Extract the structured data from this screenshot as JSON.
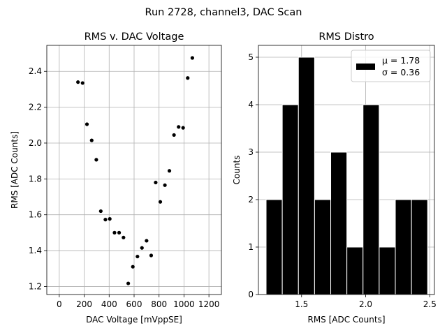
{
  "suptitle": "Run 2728, channel3, DAC Scan",
  "chart_data": [
    {
      "type": "scatter",
      "title": "RMS v. DAC Voltage",
      "xlabel": "DAC Voltage [mVppSE]",
      "ylabel": "RMS [ADC Counts]",
      "xlim": [
        -100,
        1300
      ],
      "ylim": [
        1.155,
        2.545
      ],
      "xticks": [
        0,
        200,
        400,
        600,
        800,
        1000,
        1200
      ],
      "yticks": [
        1.2,
        1.4,
        1.6,
        1.8,
        2.0,
        2.2,
        2.4
      ],
      "ytick_labels": [
        "1.2",
        "1.4",
        "1.6",
        "1.8",
        "2.0",
        "2.2",
        "2.4"
      ],
      "grid": true,
      "marker_color": "#000000",
      "points": [
        {
          "x": 150,
          "y": 2.34
        },
        {
          "x": 187,
          "y": 2.335
        },
        {
          "x": 222,
          "y": 2.105
        },
        {
          "x": 260,
          "y": 2.015
        },
        {
          "x": 297,
          "y": 1.907
        },
        {
          "x": 333,
          "y": 1.62
        },
        {
          "x": 370,
          "y": 1.573
        },
        {
          "x": 405,
          "y": 1.577
        },
        {
          "x": 443,
          "y": 1.5
        },
        {
          "x": 480,
          "y": 1.5
        },
        {
          "x": 515,
          "y": 1.473
        },
        {
          "x": 553,
          "y": 1.217
        },
        {
          "x": 590,
          "y": 1.31
        },
        {
          "x": 627,
          "y": 1.367
        },
        {
          "x": 663,
          "y": 1.415
        },
        {
          "x": 700,
          "y": 1.455
        },
        {
          "x": 737,
          "y": 1.373
        },
        {
          "x": 773,
          "y": 1.78
        },
        {
          "x": 810,
          "y": 1.672
        },
        {
          "x": 847,
          "y": 1.765
        },
        {
          "x": 883,
          "y": 1.845
        },
        {
          "x": 920,
          "y": 2.045
        },
        {
          "x": 957,
          "y": 2.09
        },
        {
          "x": 993,
          "y": 2.085
        },
        {
          "x": 1030,
          "y": 2.363
        },
        {
          "x": 1067,
          "y": 2.475
        }
      ]
    },
    {
      "type": "bar",
      "title": "RMS Distro",
      "xlabel": "RMS [ADC Counts]",
      "ylabel": "Counts",
      "xlim": [
        1.1635,
        2.5365
      ],
      "ylim": [
        0,
        5.25
      ],
      "xticks": [
        1.5,
        2.0,
        2.5
      ],
      "xtick_labels": [
        "1.5",
        "2.0",
        "2.5"
      ],
      "yticks": [
        0,
        1,
        2,
        3,
        4,
        5
      ],
      "grid": true,
      "bar_color": "#000000",
      "bin_edges": [
        1.2235,
        1.3495,
        1.4755,
        1.6015,
        1.7275,
        1.8535,
        1.9795,
        2.1055,
        2.2315,
        2.3575,
        2.4835
      ],
      "counts": [
        2,
        4,
        5,
        2,
        3,
        1,
        4,
        1,
        2,
        2
      ],
      "legend": {
        "position": "top-right",
        "line1": "μ = 1.78",
        "line2": "σ = 0.36"
      }
    }
  ]
}
